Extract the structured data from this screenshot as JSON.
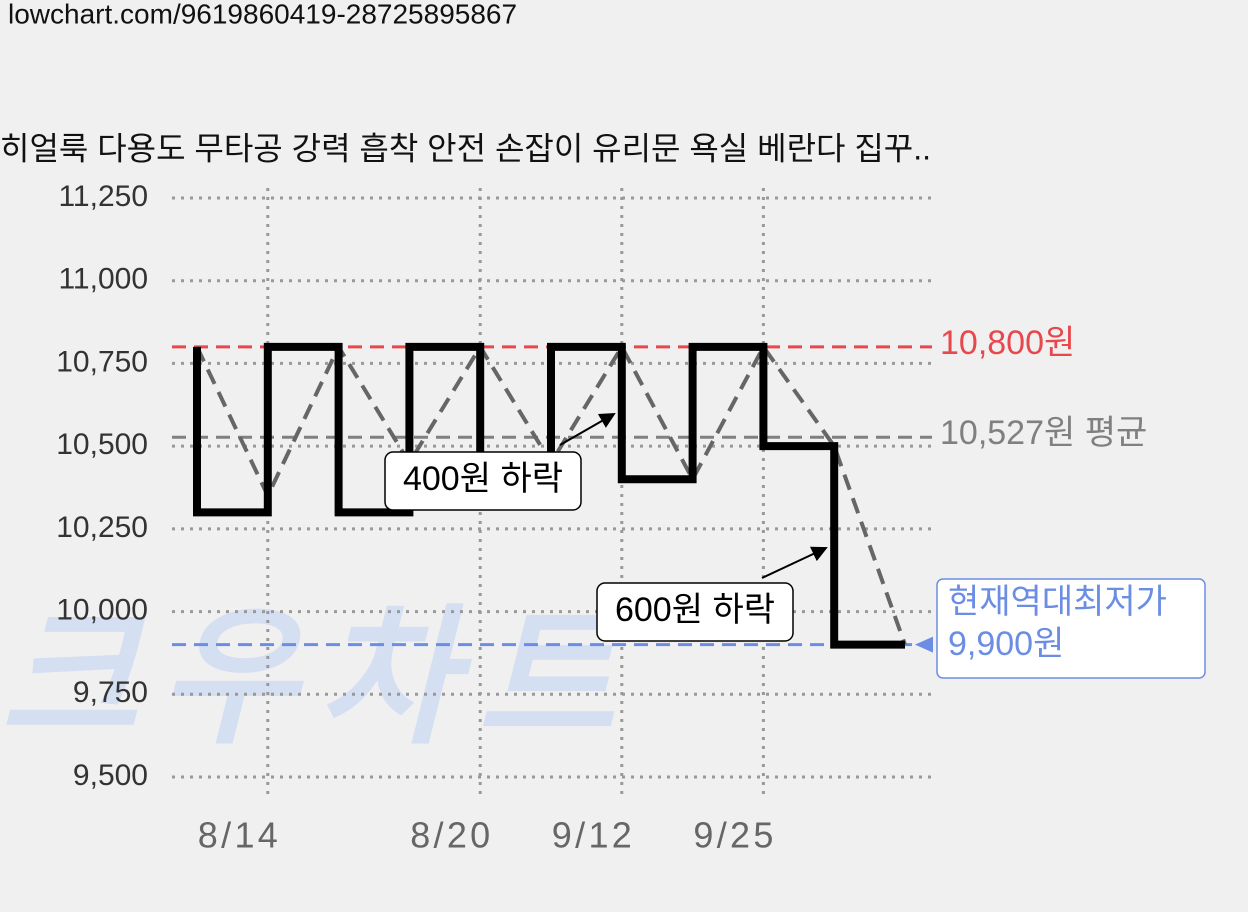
{
  "url": "lowchart.com/9619860419-28725895867",
  "chart_data": {
    "type": "line",
    "title": "히얼룩 다용도 무타공 강력 흡착 안전 손잡이 유리문 욕실 베란다 집꾸..",
    "watermark": "크우차트",
    "categories": [
      null,
      "8/14",
      null,
      null,
      "8/20",
      null,
      "9/12",
      null,
      "9/25",
      null,
      null
    ],
    "series": [
      {
        "color": "#666666",
        "style": "dashed",
        "values": [
          10800,
          10350,
          10800,
          10450,
          10800,
          10450,
          10800,
          10400,
          10800,
          10500,
          9900
        ]
      },
      {
        "color": "#000000",
        "style": "step",
        "values": [
          10800,
          10300,
          10800,
          10300,
          10800,
          10400,
          10800,
          10400,
          10800,
          10500,
          9900
        ]
      }
    ],
    "ylim": [
      9500,
      11250
    ],
    "yticks": [
      {
        "value": 9500,
        "label": "9,500"
      },
      {
        "value": 9750,
        "label": "9,750"
      },
      {
        "value": 10000,
        "label": "10,000"
      },
      {
        "value": 10250,
        "label": "10,250"
      },
      {
        "value": 10500,
        "label": "10,500"
      },
      {
        "value": 10750,
        "label": "10,750"
      },
      {
        "value": 11000,
        "label": "11,000"
      },
      {
        "value": 11250,
        "label": "11,250"
      }
    ],
    "grid": true,
    "reference_lines": [
      {
        "value": 10800,
        "label": "10,800원",
        "color": "#e8474c"
      },
      {
        "value": 10527,
        "label": "10,527원 평균",
        "color": "#808080"
      },
      {
        "value": 9900,
        "label": [
          "현재역대최저가",
          "9,900원"
        ],
        "color": "#6b8de3"
      }
    ],
    "annotations": [
      "400원 하락",
      "600원 하락"
    ]
  }
}
